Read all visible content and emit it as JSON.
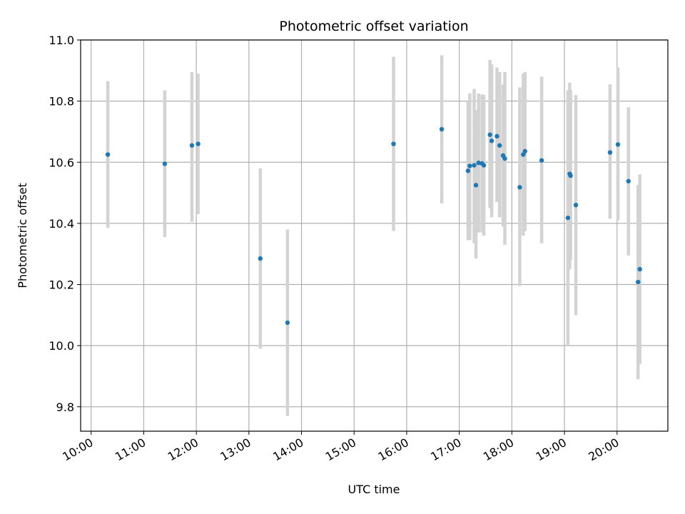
{
  "chart_data": {
    "type": "scatter",
    "title": "Photometric offset variation",
    "xlabel": "UTC time",
    "ylabel": "Photometric offset",
    "x_ticks": [
      "10:00",
      "11:00",
      "12:00",
      "13:00",
      "14:00",
      "15:00",
      "16:00",
      "17:00",
      "18:00",
      "19:00",
      "20:00"
    ],
    "y_ticks": [
      "9.8",
      "10.0",
      "10.2",
      "10.4",
      "10.6",
      "10.8",
      "11.0"
    ],
    "xlim": [
      "09:48",
      "20:58"
    ],
    "ylim": [
      9.72,
      11.0
    ],
    "grid": true,
    "point_color": "#1f77b4",
    "errorbar_color": "#d3d3d3",
    "points": [
      {
        "x": "10:19",
        "y": 10.625,
        "low": 10.385,
        "high": 10.865
      },
      {
        "x": "11:24",
        "y": 10.595,
        "low": 10.355,
        "high": 10.835
      },
      {
        "x": "11:55",
        "y": 10.655,
        "low": 10.405,
        "high": 10.895
      },
      {
        "x": "12:02",
        "y": 10.66,
        "low": 10.43,
        "high": 10.89
      },
      {
        "x": "13:13",
        "y": 10.285,
        "low": 9.99,
        "high": 10.58
      },
      {
        "x": "13:44",
        "y": 10.075,
        "low": 9.77,
        "high": 10.38
      },
      {
        "x": "15:45",
        "y": 10.66,
        "low": 10.375,
        "high": 10.945
      },
      {
        "x": "16:40",
        "y": 10.708,
        "low": 10.465,
        "high": 10.95
      },
      {
        "x": "17:10",
        "y": 10.572,
        "low": 10.345,
        "high": 10.8
      },
      {
        "x": "17:12",
        "y": 10.588,
        "low": 10.345,
        "high": 10.825
      },
      {
        "x": "17:17",
        "y": 10.59,
        "low": 10.335,
        "high": 10.84
      },
      {
        "x": "17:19",
        "y": 10.525,
        "low": 10.285,
        "high": 10.77
      },
      {
        "x": "17:22",
        "y": 10.598,
        "low": 10.37,
        "high": 10.825
      },
      {
        "x": "17:26",
        "y": 10.596,
        "low": 10.37,
        "high": 10.822
      },
      {
        "x": "17:28",
        "y": 10.59,
        "low": 10.36,
        "high": 10.82
      },
      {
        "x": "17:35",
        "y": 10.69,
        "low": 10.45,
        "high": 10.935
      },
      {
        "x": "17:37",
        "y": 10.67,
        "low": 10.42,
        "high": 10.92
      },
      {
        "x": "17:43",
        "y": 10.685,
        "low": 10.47,
        "high": 10.91
      },
      {
        "x": "17:46",
        "y": 10.655,
        "low": 10.42,
        "high": 10.895
      },
      {
        "x": "17:50",
        "y": 10.622,
        "low": 10.39,
        "high": 10.855
      },
      {
        "x": "17:52",
        "y": 10.612,
        "low": 10.33,
        "high": 10.895
      },
      {
        "x": "18:09",
        "y": 10.518,
        "low": 10.195,
        "high": 10.845
      },
      {
        "x": "18:13",
        "y": 10.625,
        "low": 10.36,
        "high": 10.89
      },
      {
        "x": "18:15",
        "y": 10.636,
        "low": 10.375,
        "high": 10.895
      },
      {
        "x": "18:34",
        "y": 10.606,
        "low": 10.335,
        "high": 10.88
      },
      {
        "x": "19:04",
        "y": 10.418,
        "low": 10.0,
        "high": 10.835
      },
      {
        "x": "19:06",
        "y": 10.562,
        "low": 10.25,
        "high": 10.86
      },
      {
        "x": "19:07",
        "y": 10.556,
        "low": 10.28,
        "high": 10.835
      },
      {
        "x": "19:13",
        "y": 10.46,
        "low": 10.1,
        "high": 10.82
      },
      {
        "x": "19:52",
        "y": 10.632,
        "low": 10.415,
        "high": 10.855
      },
      {
        "x": "20:01",
        "y": 10.658,
        "low": 10.41,
        "high": 10.91
      },
      {
        "x": "20:13",
        "y": 10.538,
        "low": 10.295,
        "high": 10.78
      },
      {
        "x": "20:24",
        "y": 10.208,
        "low": 9.89,
        "high": 10.525
      },
      {
        "x": "20:26",
        "y": 10.25,
        "low": 9.94,
        "high": 10.56
      }
    ]
  }
}
